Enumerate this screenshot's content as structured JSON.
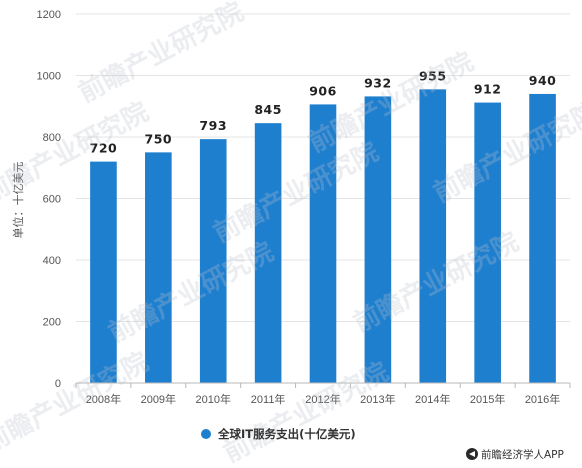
{
  "chart_data": {
    "type": "bar",
    "categories": [
      "2008年",
      "2009年",
      "2010年",
      "2011年",
      "2012年",
      "2013年",
      "2014年",
      "2015年",
      "2016年"
    ],
    "series": [
      {
        "name": "全球IT服务支出(十亿美元)",
        "values": [
          720,
          750,
          793,
          845,
          906,
          932,
          955,
          912,
          940
        ]
      }
    ],
    "data_labels": [
      "720",
      "750",
      "793",
      "845",
      "906",
      "932",
      "955",
      "912",
      "940"
    ],
    "ylim": [
      0,
      1200
    ],
    "yticks": [
      0,
      200,
      400,
      600,
      800,
      1000,
      1200
    ],
    "ylabel": "单位：十亿美元",
    "xlabel": "",
    "title": "",
    "grid": true,
    "legend_position": "bottom-center",
    "bar_color": "#1f7fcf"
  },
  "watermark": {
    "text": "前瞻产业研究院"
  },
  "branding": {
    "text": "前瞻经济学人APP",
    "icon": "qianzhan-logo-icon"
  }
}
